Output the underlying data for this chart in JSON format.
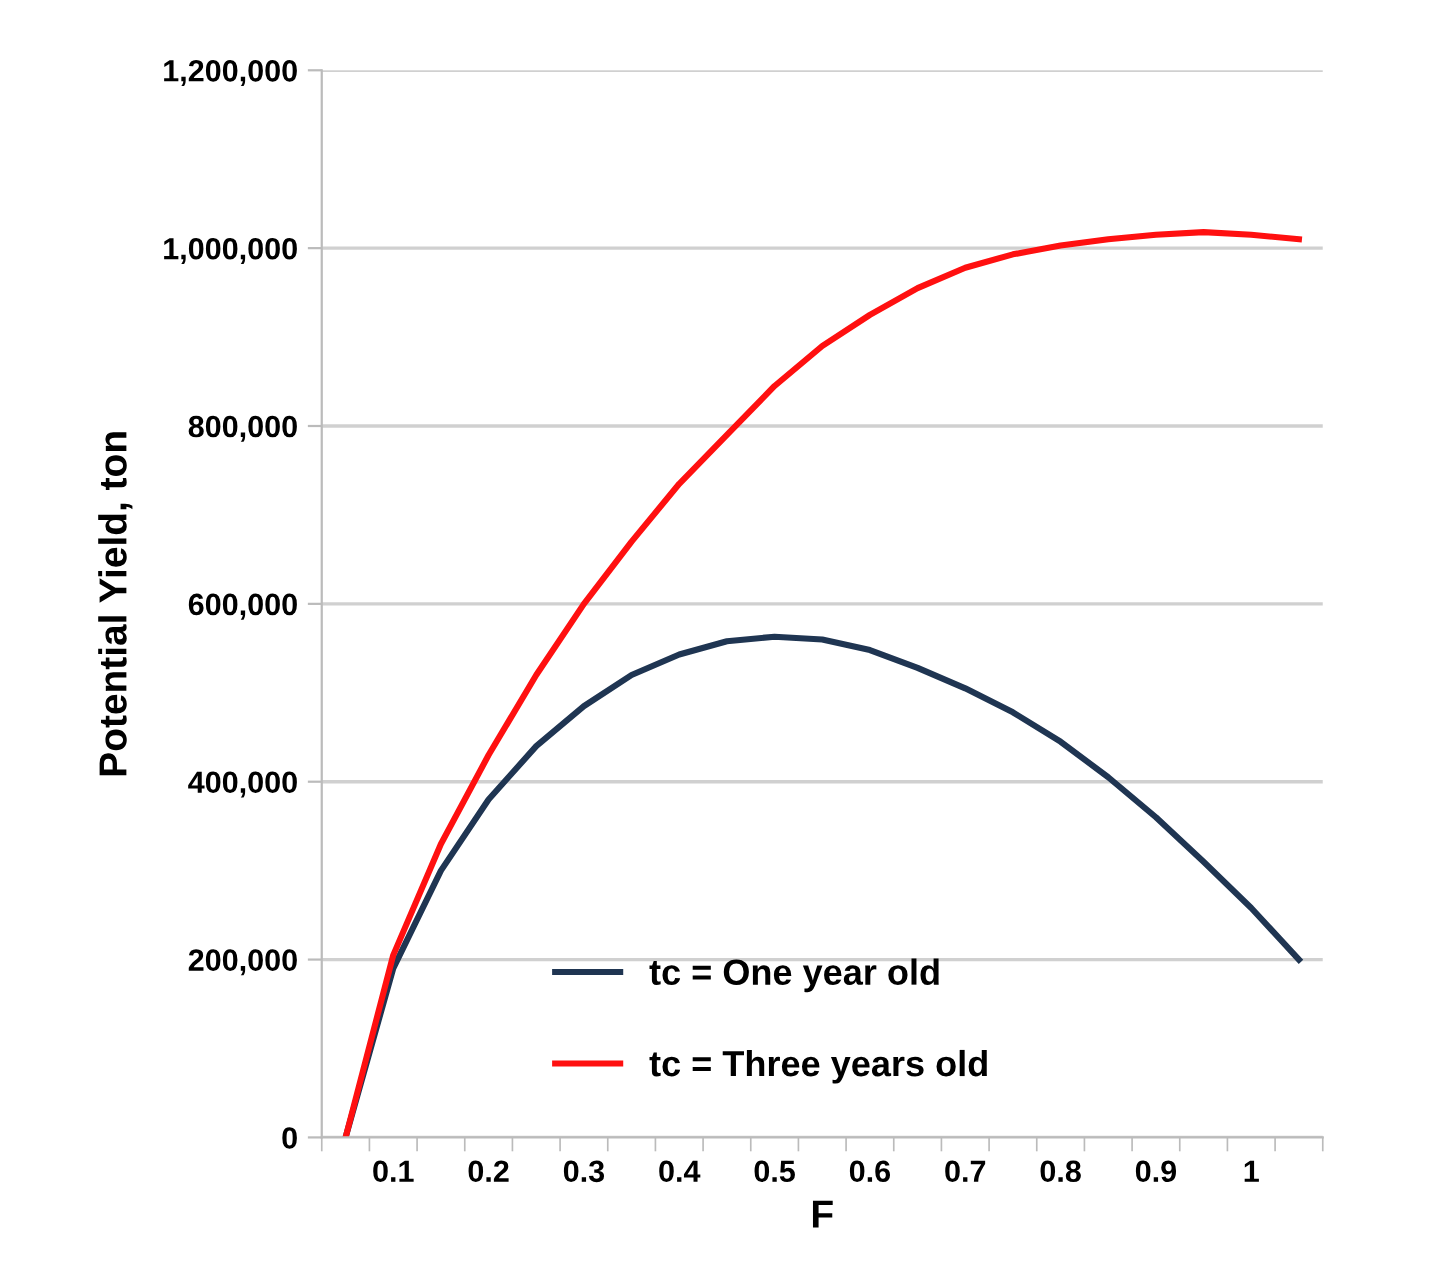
{
  "chart_data": {
    "type": "line",
    "xlabel": "F",
    "ylabel": "Potential Yield, ton",
    "categories": [
      null,
      "0.1",
      null,
      "0.2",
      null,
      "0.3",
      null,
      "0.4",
      null,
      "0.5",
      null,
      "0.6",
      null,
      "0.7",
      null,
      "0.8",
      null,
      "0.9",
      null,
      "1",
      null
    ],
    "series": [
      {
        "name": "tc = One year old",
        "color": "#1f3552",
        "values": [
          0,
          190000,
          300000,
          380000,
          440000,
          485000,
          520000,
          543000,
          558000,
          563000,
          560000,
          548000,
          528000,
          505000,
          478000,
          445000,
          405000,
          360000,
          310000,
          258000,
          200000
        ]
      },
      {
        "name": "tc = Three years old",
        "color": "#ff1010",
        "values": [
          0,
          205000,
          330000,
          430000,
          520000,
          600000,
          670000,
          735000,
          790000,
          845000,
          890000,
          925000,
          955000,
          978000,
          993000,
          1003000,
          1010000,
          1015000,
          1018000,
          1015000,
          1010000
        ]
      }
    ],
    "ylim": [
      0,
      1200000
    ],
    "yticks": [
      {
        "value": 0,
        "label": "0"
      },
      {
        "value": 200000,
        "label": "200,000"
      },
      {
        "value": 400000,
        "label": "400,000"
      },
      {
        "value": 600000,
        "label": "600,000"
      },
      {
        "value": 800000,
        "label": "800,000"
      },
      {
        "value": 1000000,
        "label": "1,000,000"
      },
      {
        "value": 1200000,
        "label": "1,200,000"
      }
    ],
    "grid": "y",
    "legend": "bottom",
    "marker": "none",
    "line_style": "solid"
  }
}
